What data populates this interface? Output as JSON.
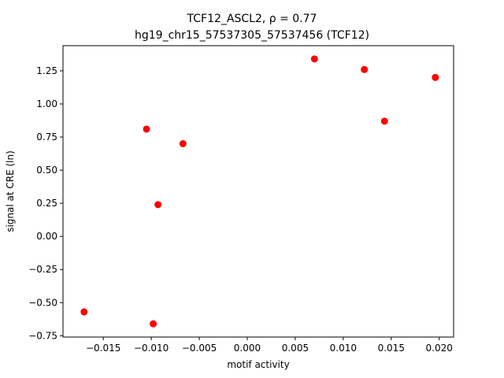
{
  "chart_data": {
    "type": "scatter",
    "title_line1": "TCF12_ASCL2, ρ = 0.77",
    "title_line2": "hg19_chr15_57537305_57537456 (TCF12)",
    "xlabel": "motif activity",
    "ylabel": "signal at CRE (ln)",
    "xlim": [
      -0.0192,
      0.0215
    ],
    "ylim": [
      -0.76,
      1.44
    ],
    "xticks": [
      -0.015,
      -0.01,
      -0.005,
      0.0,
      0.005,
      0.01,
      0.015,
      0.02
    ],
    "xtick_labels": [
      "−0.015",
      "−0.010",
      "−0.005",
      "0.000",
      "0.005",
      "0.010",
      "0.015",
      "0.020"
    ],
    "yticks": [
      -0.75,
      -0.5,
      -0.25,
      0.0,
      0.25,
      0.5,
      0.75,
      1.0,
      1.25
    ],
    "ytick_labels": [
      "−0.75",
      "−0.50",
      "−0.25",
      "0.00",
      "0.25",
      "0.50",
      "0.75",
      "1.00",
      "1.25"
    ],
    "grid": false,
    "point_color": "#ff0000",
    "points": [
      {
        "x": -0.017,
        "y": -0.57
      },
      {
        "x": -0.0098,
        "y": -0.66
      },
      {
        "x": -0.0105,
        "y": 0.81
      },
      {
        "x": -0.0093,
        "y": 0.24
      },
      {
        "x": -0.0067,
        "y": 0.7
      },
      {
        "x": 0.007,
        "y": 1.34
      },
      {
        "x": 0.0122,
        "y": 1.26
      },
      {
        "x": 0.0143,
        "y": 0.87
      },
      {
        "x": 0.0196,
        "y": 1.2
      }
    ]
  }
}
